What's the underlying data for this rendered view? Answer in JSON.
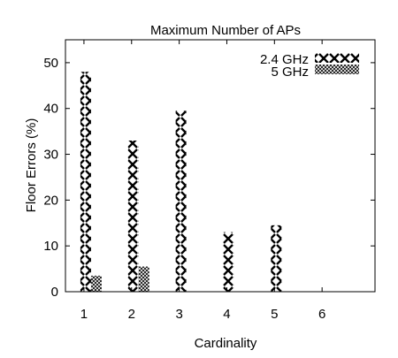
{
  "chart_data": {
    "type": "bar",
    "title": "Maximum Number of APs",
    "xlabel": "Cardinality",
    "ylabel": "Floor Errors (%)",
    "categories": [
      "1",
      "2",
      "3",
      "4",
      "5",
      "6"
    ],
    "ylim": [
      0,
      55
    ],
    "yticks": [
      "0",
      "10",
      "20",
      "30",
      "40",
      "50"
    ],
    "legend_position": "top-right",
    "grid": false,
    "series": [
      {
        "name": "2.4 GHz",
        "pattern": "large-x-hatch",
        "values": [
          48,
          33,
          39.5,
          13,
          14.5,
          0
        ]
      },
      {
        "name": "5 GHz",
        "pattern": "fine-cross-hatch",
        "values": [
          3.5,
          5.5,
          0,
          0,
          0,
          0
        ]
      }
    ]
  }
}
